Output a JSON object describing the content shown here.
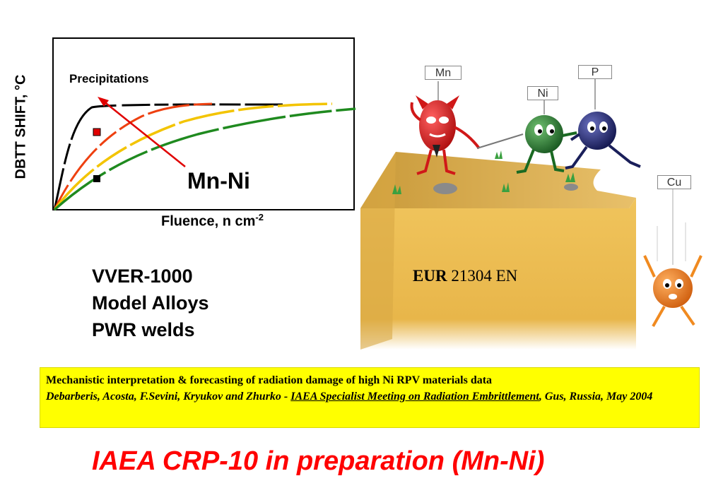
{
  "chart": {
    "ylabel": "DBTT SHIFT, °C",
    "xlabel_base": "Fluence, n cm",
    "xlabel_exp": "-2",
    "annotation_precipitations": "Precipitations",
    "annotation_mnni": "Mn-Ni"
  },
  "alloys": [
    "VVER-1000",
    "Model Alloys",
    "PWR welds"
  ],
  "report": {
    "prefix": "EUR",
    "number": "21304 EN"
  },
  "reference": {
    "title": "Mechanistic interpretation & forecasting of radiation damage of high Ni RPV materials data",
    "authors": "Debarberis, Acosta, F.Sevini, Kryukov and Zhurko - ",
    "meeting": "IAEA Specialist Meeting on Radiation Embrittlement",
    "location": ", Gus, Russia, May 2004"
  },
  "headline": "IAEA CRP-10 in preparation (Mn-Ni)",
  "scene": {
    "labels": {
      "mn": "Mn",
      "ni": "Ni",
      "p": "P",
      "cu": "Cu"
    },
    "colors": {
      "mn": "#e0202a",
      "ni": "#2e8b3a",
      "p": "#2a2f7a",
      "cu": "#f08a20",
      "cliff": "#e8b64a"
    }
  }
}
